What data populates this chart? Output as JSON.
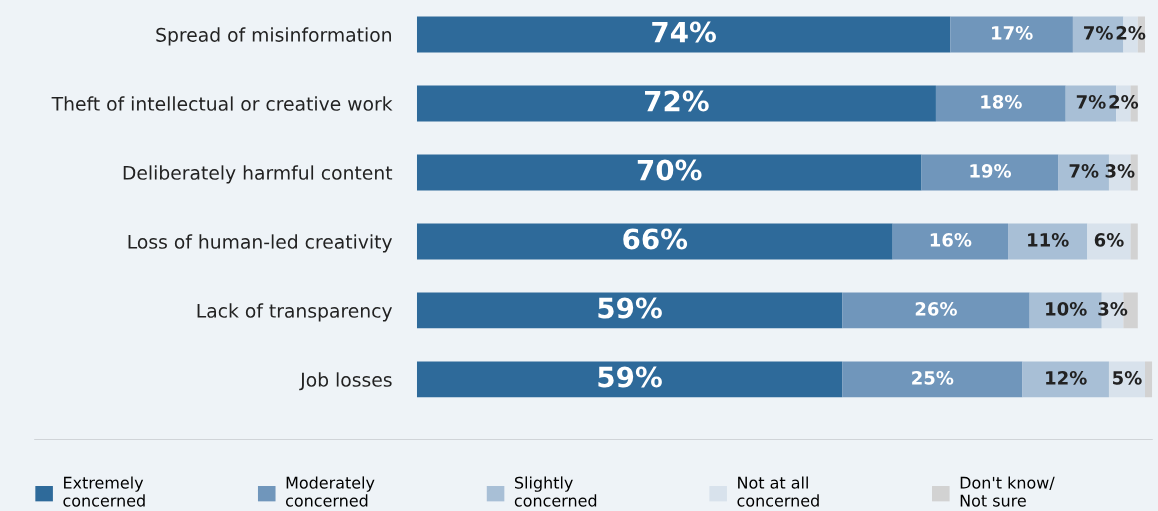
{
  "chart_data": {
    "type": "bar",
    "orientation": "horizontal",
    "stacked": true,
    "legend": "bottom",
    "grid": false,
    "tick_labels": "y",
    "categories": [
      "Spread of misinformation",
      "Theft of intellectual or creative work",
      "Deliberately harmful content",
      "Loss of human-led creativity",
      "Lack of transparency",
      "Job losses"
    ],
    "series": [
      {
        "name": "Extremely\nconcerned",
        "color": "#2e6a9a",
        "values": [
          74,
          72,
          70,
          66,
          59,
          59
        ],
        "value_labels": [
          "74%",
          "72%",
          "70%",
          "66%",
          "59%",
          "59%"
        ]
      },
      {
        "name": "Moderately\nconcerned",
        "color": "#7096bb",
        "values": [
          17,
          18,
          19,
          16,
          26,
          25
        ],
        "value_labels": [
          "17%",
          "18%",
          "19%",
          "16%",
          "26%",
          "25%"
        ]
      },
      {
        "name": "Slightly\nconcerned",
        "color": "#a8bfd6",
        "values": [
          7,
          7,
          7,
          11,
          10,
          12
        ],
        "value_labels": [
          "7%",
          "7%",
          "7%",
          "11%",
          "10%",
          "12%"
        ]
      },
      {
        "name": "Not at all\nconcerned",
        "color": "#d8e2ec",
        "values": [
          2,
          2,
          3,
          6,
          3,
          5
        ],
        "value_labels": [
          "2%",
          "2%",
          "3%",
          "6%",
          "3%",
          "5%"
        ]
      },
      {
        "name": "Don't know/\nNot sure",
        "color": "#d2d2d2",
        "values": [
          1,
          1,
          1,
          1,
          2,
          1
        ],
        "value_labels": [
          null,
          null,
          null,
          null,
          null,
          null
        ]
      }
    ]
  }
}
